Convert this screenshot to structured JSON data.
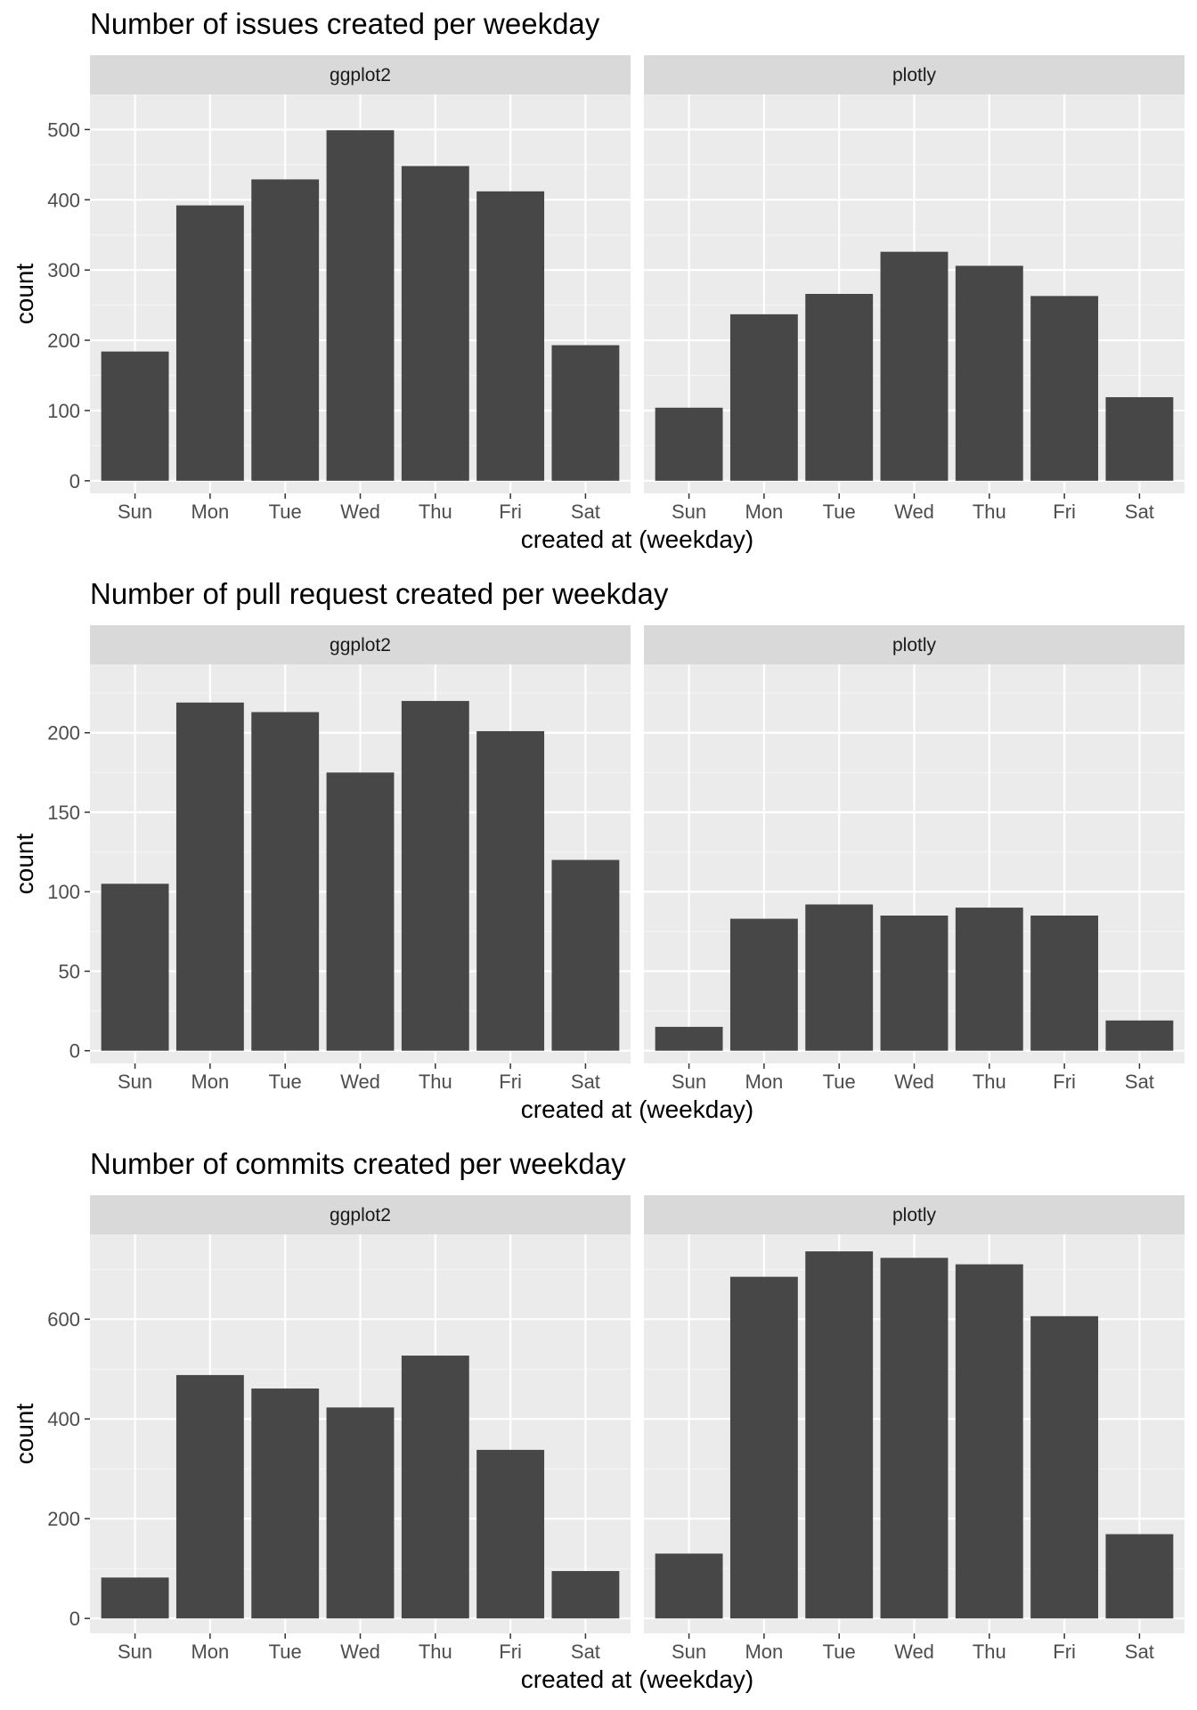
{
  "colors": {
    "panel_background": "#ebebeb",
    "grid_major": "#ffffff",
    "strip_background": "#d9d9d9",
    "bar_fill": "#474747",
    "tick_color": "#333333",
    "tick_label_color": "#4d4d4d"
  },
  "chart_data": [
    {
      "type": "bar",
      "title": "Number of issues created per weekday",
      "xlabel": "created at (weekday)",
      "ylabel": "count",
      "categories": [
        "Sun",
        "Mon",
        "Tue",
        "Wed",
        "Thu",
        "Fri",
        "Sat"
      ],
      "ylim": [
        -18,
        550
      ],
      "yticks": [
        0,
        100,
        200,
        300,
        400,
        500
      ],
      "ytick_labels": [
        "0",
        "100",
        "200",
        "300",
        "400",
        "500"
      ],
      "grid": true,
      "facets": [
        {
          "name": "ggplot2",
          "values": [
            184,
            392,
            429,
            499,
            448,
            412,
            193
          ]
        },
        {
          "name": "plotly",
          "values": [
            104,
            237,
            266,
            326,
            306,
            263,
            119
          ]
        }
      ]
    },
    {
      "type": "bar",
      "title": "Number of pull request created per weekday",
      "xlabel": "created at (weekday)",
      "ylabel": "count",
      "categories": [
        "Sun",
        "Mon",
        "Tue",
        "Wed",
        "Thu",
        "Fri",
        "Sat"
      ],
      "ylim": [
        -8,
        243
      ],
      "yticks": [
        0,
        50,
        100,
        150,
        200
      ],
      "ytick_labels": [
        "0",
        "50",
        "100",
        "150",
        "200"
      ],
      "grid": true,
      "facets": [
        {
          "name": "ggplot2",
          "values": [
            105,
            219,
            213,
            175,
            220,
            201,
            120
          ]
        },
        {
          "name": "plotly",
          "values": [
            15,
            83,
            92,
            85,
            90,
            85,
            19
          ]
        }
      ]
    },
    {
      "type": "bar",
      "title": "Number of commits created per weekday",
      "xlabel": "created at (weekday)",
      "ylabel": "count",
      "categories": [
        "Sun",
        "Mon",
        "Tue",
        "Wed",
        "Thu",
        "Fri",
        "Sat"
      ],
      "ylim": [
        -30,
        770
      ],
      "yticks": [
        0,
        200,
        400,
        600
      ],
      "ytick_labels": [
        "0",
        "200",
        "400",
        "600"
      ],
      "grid": true,
      "facets": [
        {
          "name": "ggplot2",
          "values": [
            82,
            488,
            461,
            423,
            527,
            338,
            95
          ]
        },
        {
          "name": "plotly",
          "values": [
            130,
            685,
            736,
            723,
            710,
            606,
            169
          ]
        }
      ]
    }
  ]
}
